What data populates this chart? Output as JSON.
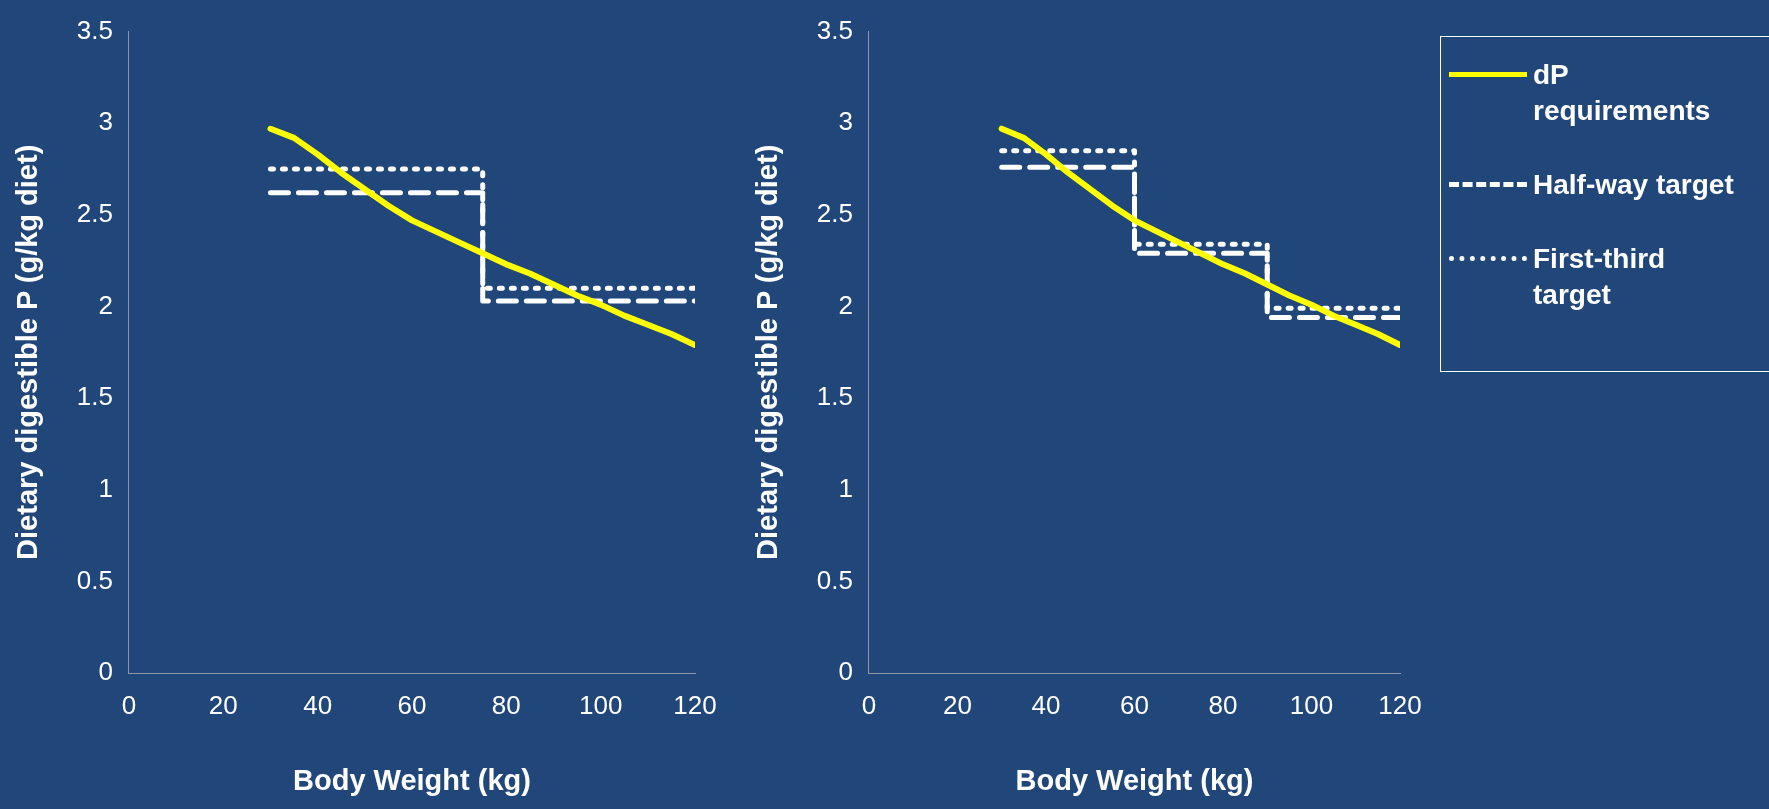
{
  "chart_data": [
    {
      "type": "line",
      "xlabel": "Body Weight (kg)",
      "ylabel": "Dietary digestible P (g/kg diet)",
      "xlim": [
        0,
        120
      ],
      "xticks": [
        0,
        20,
        40,
        60,
        80,
        100,
        120
      ],
      "ylim": [
        0,
        3.5
      ],
      "yticks": [
        0,
        0.5,
        1,
        1.5,
        2,
        2.5,
        3,
        3.5
      ],
      "grid": false,
      "legend": false,
      "marker": "none",
      "series": [
        {
          "color": "#ffff00",
          "line_style": "solid",
          "x": [
            30,
            35,
            40,
            45,
            50,
            55,
            60,
            65,
            70,
            75,
            80,
            85,
            90,
            95,
            100,
            105,
            110,
            115,
            120
          ],
          "values": [
            2.97,
            2.92,
            2.83,
            2.73,
            2.64,
            2.55,
            2.47,
            2.41,
            2.35,
            2.29,
            2.23,
            2.18,
            2.12,
            2.06,
            2.01,
            1.95,
            1.9,
            1.85,
            1.79
          ]
        },
        {
          "type": "step",
          "color": "#ffffff",
          "line_style": "dashed",
          "x": [
            30,
            75,
            120
          ],
          "values": [
            2.62,
            2.03,
            2.03
          ]
        },
        {
          "type": "step",
          "color": "#ffffff",
          "line_style": "dotted",
          "x": [
            30,
            75,
            120
          ],
          "values": [
            2.75,
            2.1,
            2.1
          ]
        }
      ]
    },
    {
      "type": "line",
      "xlabel": "Body Weight (kg)",
      "ylabel": "Dietary digestible P (g/kg diet)",
      "xlim": [
        0,
        120
      ],
      "xticks": [
        0,
        20,
        40,
        60,
        80,
        100,
        120
      ],
      "ylim": [
        0,
        3.5
      ],
      "yticks": [
        0,
        0.5,
        1,
        1.5,
        2,
        2.5,
        3,
        3.5
      ],
      "grid": false,
      "legend": "right",
      "marker": "none",
      "series": [
        {
          "name": "dP requirements",
          "color": "#ffff00",
          "line_style": "solid",
          "x": [
            30,
            35,
            40,
            45,
            50,
            55,
            60,
            65,
            70,
            75,
            80,
            85,
            90,
            95,
            100,
            105,
            110,
            115,
            120
          ],
          "values": [
            2.97,
            2.92,
            2.83,
            2.73,
            2.64,
            2.55,
            2.47,
            2.41,
            2.35,
            2.29,
            2.23,
            2.18,
            2.12,
            2.06,
            2.01,
            1.95,
            1.9,
            1.85,
            1.79
          ]
        },
        {
          "type": "step",
          "name": "Half-way target",
          "color": "#ffffff",
          "line_style": "dashed",
          "x": [
            30,
            60,
            90,
            120
          ],
          "values": [
            2.76,
            2.29,
            1.94,
            1.94
          ]
        },
        {
          "type": "step",
          "name": "First-third target",
          "color": "#ffffff",
          "line_style": "dotted",
          "x": [
            30,
            60,
            90,
            120
          ],
          "values": [
            2.85,
            2.34,
            1.99,
            1.99
          ]
        }
      ]
    }
  ]
}
